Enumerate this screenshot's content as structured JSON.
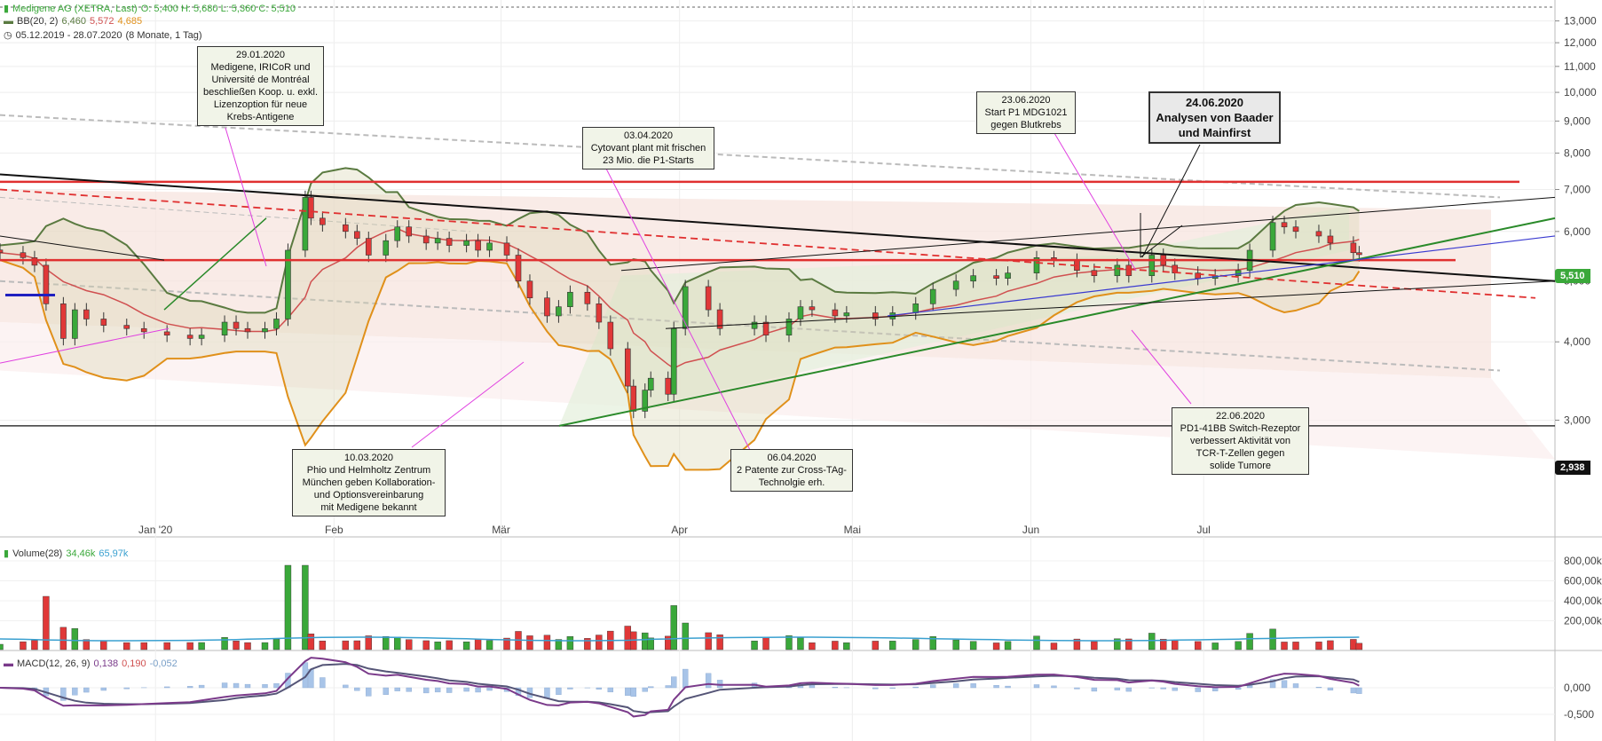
{
  "header": {
    "instrument": "Medigene AG (XETRA, Last)",
    "ohlc": "O: 5,400  H: 5,680  L: 5,360  C: 5,510",
    "bb_label": "BB(20, 2)",
    "bb_values": [
      "6,460",
      "5,572",
      "4,685"
    ],
    "range": "05.12.2019 - 28.07.2020",
    "range_detail": "(8 Monate, 1 Tag)"
  },
  "colors": {
    "up": "#3aa83a",
    "down": "#e03838",
    "bb_upper": "#5a7a40",
    "bb_mid": "#d05050",
    "bb_lower": "#e0901a",
    "support": "#e03030",
    "trend_green": "#2a8a2a",
    "macd": "#7a3a8a",
    "signal": "#555577",
    "hist": "#a8c4e8",
    "volume_ma": "#3aa0d0"
  },
  "price_tag": "5,510",
  "line_tag": "2,938",
  "annotations": [
    {
      "id": "ann-2901",
      "lines": [
        "29.01.2020",
        "Medigene, IRICoR und",
        "Université de Montréal",
        "beschließen Koop. u. exkl.",
        "Lizenzoption für neue",
        "Krebs-Antigene"
      ]
    },
    {
      "id": "ann-0304",
      "lines": [
        "03.04.2020",
        "Cytovant plant mit frischen",
        "23 Mio. die P1-Starts"
      ]
    },
    {
      "id": "ann-2306",
      "lines": [
        "23.06.2020",
        "Start P1 MDG1021",
        "gegen Blutkrebs"
      ]
    },
    {
      "id": "ann-2406",
      "lines": [
        "24.06.2020",
        "Analysen von Baader",
        "und Mainfirst"
      ]
    },
    {
      "id": "ann-1003",
      "lines": [
        "10.03.2020",
        "Phio und Helmholtz Zentrum",
        "München geben Kollaboration-",
        "und Optionsvereinbarung",
        "mit Medigene bekannt"
      ]
    },
    {
      "id": "ann-0604",
      "lines": [
        "06.04.2020",
        "2 Patente zur Cross-TAg-",
        "Technolgie erh."
      ]
    },
    {
      "id": "ann-2206",
      "lines": [
        "22.06.2020",
        "PD1-41BB Switch-Rezeptor",
        "verbessert Aktivität von",
        "TCR-T-Zellen gegen",
        "solide Tumore"
      ]
    }
  ],
  "volume_panel": {
    "label": "Volume(28)",
    "values": [
      "34,46k",
      "65,97k"
    ]
  },
  "macd_panel": {
    "label": "MACD(12, 26, 9)",
    "values": [
      "0,138",
      "0,190",
      "-0,052"
    ]
  },
  "chart_data": {
    "type": "candlestick",
    "y_scale": "log",
    "price_axis_ticks": [
      "13,000",
      "12,000",
      "11,000",
      "10,000",
      "9,000",
      "8,000",
      "7,000",
      "6,000",
      "5,000",
      "4,000",
      "3,000"
    ],
    "price_axis_values": [
      13,
      12,
      11,
      10,
      9,
      8,
      7,
      6,
      5,
      4,
      3
    ],
    "ylim": [
      2.3,
      13.5
    ],
    "x_months": [
      {
        "label": "Jan '20",
        "date": "2020-01-01"
      },
      {
        "label": "Feb",
        "date": "2020-02-01"
      },
      {
        "label": "Mär",
        "date": "2020-03-01"
      },
      {
        "label": "Apr",
        "date": "2020-04-01"
      },
      {
        "label": "Mai",
        "date": "2020-05-01"
      },
      {
        "label": "Jun",
        "date": "2020-06-01"
      },
      {
        "label": "Jul",
        "date": "2020-07-01"
      }
    ],
    "xlim": [
      "2019-12-05",
      "2020-08-31"
    ],
    "close_series": [
      [
        "2019-12-05",
        5.55
      ],
      [
        "2019-12-09",
        5.45
      ],
      [
        "2019-12-11",
        5.3
      ],
      [
        "2019-12-13",
        4.6
      ],
      [
        "2019-12-16",
        4.05
      ],
      [
        "2019-12-18",
        4.5
      ],
      [
        "2019-12-20",
        4.35
      ],
      [
        "2019-12-23",
        4.25
      ],
      [
        "2019-12-27",
        4.2
      ],
      [
        "2019-12-30",
        4.15
      ],
      [
        "2020-01-03",
        4.1
      ],
      [
        "2020-01-07",
        4.05
      ],
      [
        "2020-01-09",
        4.1
      ],
      [
        "2020-01-13",
        4.3
      ],
      [
        "2020-01-15",
        4.2
      ],
      [
        "2020-01-17",
        4.15
      ],
      [
        "2020-01-20",
        4.2
      ],
      [
        "2020-01-22",
        4.35
      ],
      [
        "2020-01-24",
        5.6
      ],
      [
        "2020-01-27",
        6.8
      ],
      [
        "2020-01-28",
        6.3
      ],
      [
        "2020-01-30",
        6.15
      ],
      [
        "2020-02-03",
        6.0
      ],
      [
        "2020-02-05",
        5.85
      ],
      [
        "2020-02-07",
        5.5
      ],
      [
        "2020-02-10",
        5.8
      ],
      [
        "2020-02-12",
        6.1
      ],
      [
        "2020-02-14",
        5.9
      ],
      [
        "2020-02-17",
        5.75
      ],
      [
        "2020-02-19",
        5.85
      ],
      [
        "2020-02-21",
        5.7
      ],
      [
        "2020-02-24",
        5.8
      ],
      [
        "2020-02-26",
        5.6
      ],
      [
        "2020-02-28",
        5.75
      ],
      [
        "2020-03-02",
        5.5
      ],
      [
        "2020-03-04",
        5.0
      ],
      [
        "2020-03-06",
        4.7
      ],
      [
        "2020-03-09",
        4.4
      ],
      [
        "2020-03-11",
        4.55
      ],
      [
        "2020-03-13",
        4.8
      ],
      [
        "2020-03-16",
        4.6
      ],
      [
        "2020-03-18",
        4.3
      ],
      [
        "2020-03-20",
        3.9
      ],
      [
        "2020-03-23",
        3.4
      ],
      [
        "2020-03-24",
        3.1
      ],
      [
        "2020-03-26",
        3.35
      ],
      [
        "2020-03-27",
        3.5
      ],
      [
        "2020-03-30",
        3.3
      ],
      [
        "2020-03-31",
        4.2
      ],
      [
        "2020-04-02",
        4.9
      ],
      [
        "2020-04-06",
        4.5
      ],
      [
        "2020-04-08",
        4.2
      ],
      [
        "2020-04-14",
        4.3
      ],
      [
        "2020-04-16",
        4.1
      ],
      [
        "2020-04-20",
        4.35
      ],
      [
        "2020-04-22",
        4.55
      ],
      [
        "2020-04-24",
        4.5
      ],
      [
        "2020-04-28",
        4.4
      ],
      [
        "2020-04-30",
        4.45
      ],
      [
        "2020-05-05",
        4.35
      ],
      [
        "2020-05-08",
        4.45
      ],
      [
        "2020-05-12",
        4.6
      ],
      [
        "2020-05-15",
        4.85
      ],
      [
        "2020-05-19",
        5.0
      ],
      [
        "2020-05-22",
        5.1
      ],
      [
        "2020-05-26",
        5.05
      ],
      [
        "2020-05-28",
        5.15
      ],
      [
        "2020-06-02",
        5.45
      ],
      [
        "2020-06-05",
        5.4
      ],
      [
        "2020-06-09",
        5.2
      ],
      [
        "2020-06-12",
        5.1
      ],
      [
        "2020-06-16",
        5.3
      ],
      [
        "2020-06-18",
        5.1
      ],
      [
        "2020-06-22",
        5.5
      ],
      [
        "2020-06-24",
        5.3
      ],
      [
        "2020-06-26",
        5.15
      ],
      [
        "2020-06-30",
        5.05
      ],
      [
        "2020-07-03",
        5.1
      ],
      [
        "2020-07-07",
        5.2
      ],
      [
        "2020-07-09",
        5.6
      ],
      [
        "2020-07-13",
        6.2
      ],
      [
        "2020-07-15",
        6.1
      ],
      [
        "2020-07-17",
        6.0
      ],
      [
        "2020-07-21",
        5.9
      ],
      [
        "2020-07-23",
        5.75
      ],
      [
        "2020-07-27",
        5.55
      ],
      [
        "2020-07-28",
        5.51
      ]
    ],
    "horizontal_levels": [
      7.2,
      5.4,
      2.938
    ],
    "volume_axis_ticks": [
      "800,00k",
      "600,00k",
      "400,00k",
      "200,00k"
    ],
    "volume_axis_values": [
      800,
      600,
      400,
      200
    ],
    "macd_axis_ticks": [
      "0,000",
      "-0,500"
    ],
    "macd_axis_values": [
      0,
      -0.5
    ]
  }
}
